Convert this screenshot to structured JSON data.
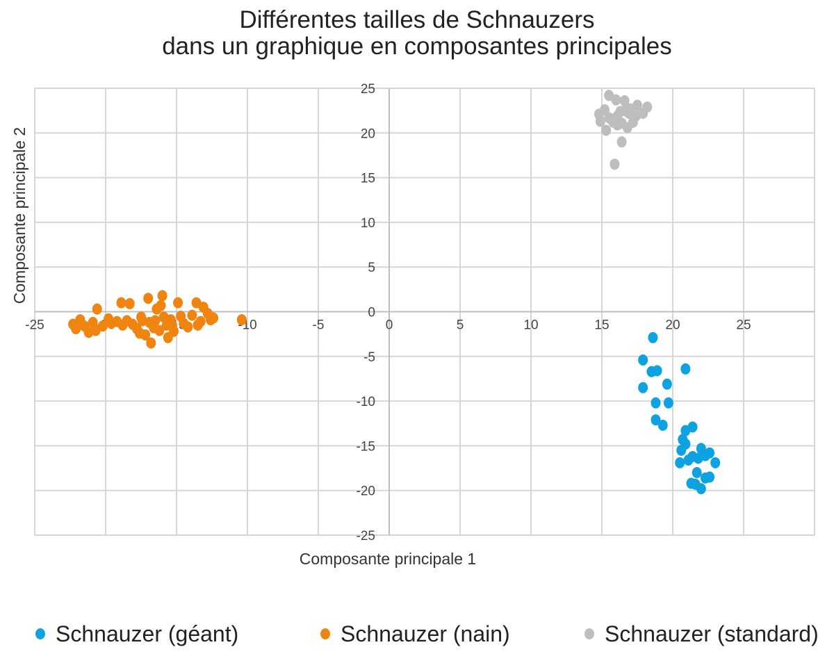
{
  "chart_data": {
    "type": "scatter",
    "title": [
      "Différentes tailles de Schnauzers",
      "dans un graphique en composantes principales"
    ],
    "xlabel": "Composante principale 1",
    "ylabel": "Composante principale 2",
    "xlim": [
      -25,
      30
    ],
    "ylim": [
      -25,
      25
    ],
    "x_ticks": [
      -25,
      -20,
      -15,
      -10,
      -5,
      0,
      5,
      10,
      15,
      20,
      25
    ],
    "y_ticks": [
      25,
      20,
      15,
      10,
      5,
      0,
      -5,
      -10,
      -15,
      -20,
      -25
    ],
    "grid": true,
    "legend_position": "bottom",
    "series": [
      {
        "name": "Schnauzer (géant)",
        "color": "#0ea3e0",
        "points": [
          [
            18.6,
            -2.9
          ],
          [
            17.9,
            -5.4
          ],
          [
            18.5,
            -6.7
          ],
          [
            18.9,
            -6.6
          ],
          [
            20.9,
            -6.4
          ],
          [
            19.6,
            -8.1
          ],
          [
            17.9,
            -8.5
          ],
          [
            18.8,
            -10.2
          ],
          [
            19.7,
            -10.2
          ],
          [
            18.8,
            -12.1
          ],
          [
            19.3,
            -12.7
          ],
          [
            20.9,
            -13.3
          ],
          [
            21.4,
            -12.9
          ],
          [
            20.7,
            -14.3
          ],
          [
            20.9,
            -14.8
          ],
          [
            20.6,
            -15.5
          ],
          [
            22.0,
            -15.3
          ],
          [
            22.6,
            -15.8
          ],
          [
            21.4,
            -16.2
          ],
          [
            22.3,
            -16.1
          ],
          [
            20.5,
            -16.9
          ],
          [
            21.1,
            -16.6
          ],
          [
            21.8,
            -16.4
          ],
          [
            23.0,
            -16.9
          ],
          [
            21.7,
            -18.0
          ],
          [
            21.3,
            -19.2
          ],
          [
            22.3,
            -18.6
          ],
          [
            22.0,
            -19.8
          ],
          [
            21.6,
            -19.3
          ],
          [
            22.6,
            -18.5
          ]
        ]
      },
      {
        "name": "Schnauzer (nain)",
        "color": "#ef8510",
        "points": [
          [
            -22.3,
            -1.4
          ],
          [
            -22.1,
            -1.9
          ],
          [
            -21.8,
            -0.9
          ],
          [
            -21.5,
            -1.6
          ],
          [
            -21.2,
            -2.3
          ],
          [
            -20.9,
            -1.2
          ],
          [
            -20.6,
            0.3
          ],
          [
            -20.7,
            -2.1
          ],
          [
            -20.2,
            -1.6
          ],
          [
            -19.8,
            -0.8
          ],
          [
            -19.6,
            -1.3
          ],
          [
            -19.2,
            -1.1
          ],
          [
            -18.9,
            1.0
          ],
          [
            -18.5,
            -1.0
          ],
          [
            -18.3,
            0.9
          ],
          [
            -18.1,
            -1.4
          ],
          [
            -17.8,
            -1.9
          ],
          [
            -17.6,
            -2.4
          ],
          [
            -17.4,
            -1.0
          ],
          [
            -17.2,
            -2.6
          ],
          [
            -17.0,
            1.5
          ],
          [
            -16.9,
            -1.2
          ],
          [
            -16.8,
            -3.5
          ],
          [
            -16.6,
            -1.8
          ],
          [
            -16.4,
            0.3
          ],
          [
            -16.2,
            -2.1
          ],
          [
            -16.0,
            1.8
          ],
          [
            -15.9,
            -0.6
          ],
          [
            -15.7,
            -1.5
          ],
          [
            -15.6,
            -2.9
          ],
          [
            -15.4,
            -0.9
          ],
          [
            -15.2,
            -2.2
          ],
          [
            -14.9,
            1.0
          ],
          [
            -14.7,
            -0.5
          ],
          [
            -14.5,
            -1.3
          ],
          [
            -14.2,
            -1.7
          ],
          [
            -13.9,
            -0.4
          ],
          [
            -13.6,
            1.0
          ],
          [
            -13.5,
            -1.5
          ],
          [
            -13.3,
            -1.1
          ],
          [
            -13.1,
            0.5
          ],
          [
            -12.8,
            -0.2
          ],
          [
            -12.6,
            -0.9
          ],
          [
            -12.4,
            -0.7
          ],
          [
            -10.4,
            -0.9
          ],
          [
            -16.5,
            -1.0
          ],
          [
            -17.5,
            -0.6
          ],
          [
            -15.3,
            -1.6
          ],
          [
            -18.8,
            -1.5
          ],
          [
            -16.1,
            0.7
          ]
        ]
      },
      {
        "name": "Schnauzer (standard)",
        "color": "#bdbdbd",
        "points": [
          [
            15.5,
            24.2
          ],
          [
            16.0,
            23.7
          ],
          [
            16.6,
            23.6
          ],
          [
            17.5,
            23.1
          ],
          [
            17.0,
            22.7
          ],
          [
            15.2,
            22.6
          ],
          [
            16.3,
            22.4
          ],
          [
            16.9,
            22.2
          ],
          [
            18.2,
            22.9
          ],
          [
            14.8,
            22.1
          ],
          [
            15.5,
            21.7
          ],
          [
            16.1,
            21.9
          ],
          [
            17.4,
            21.9
          ],
          [
            17.9,
            22.2
          ],
          [
            14.9,
            21.3
          ],
          [
            15.8,
            21.2
          ],
          [
            16.4,
            21.1
          ],
          [
            17.2,
            21.2
          ],
          [
            15.3,
            20.3
          ],
          [
            16.1,
            20.9
          ],
          [
            16.8,
            20.6
          ],
          [
            16.4,
            19.0
          ],
          [
            15.9,
            16.5
          ],
          [
            16.6,
            22.5
          ],
          [
            15.6,
            21.6
          ]
        ]
      }
    ]
  }
}
